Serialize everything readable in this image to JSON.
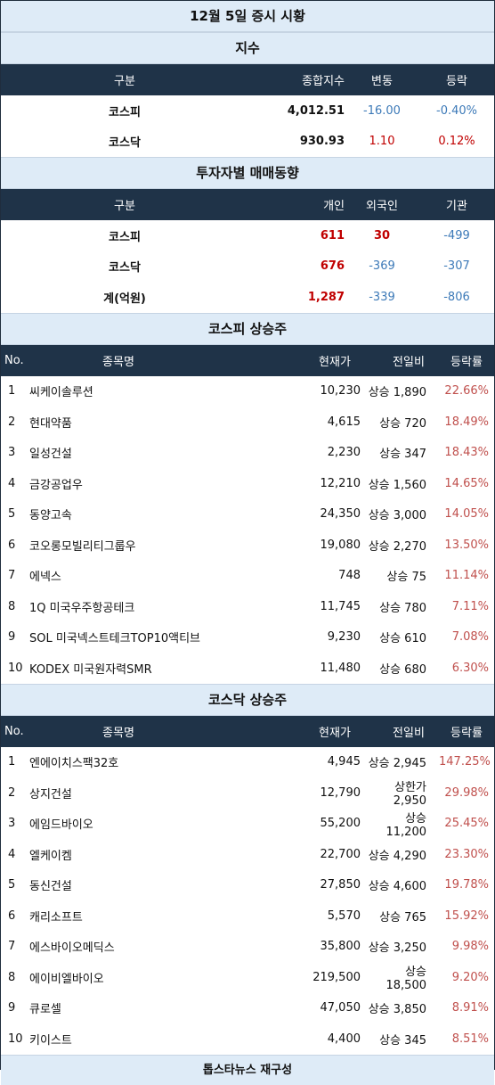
{
  "title": "12월 5일 증시 시황",
  "index": {
    "section_title": "지수",
    "headers": [
      "구분",
      "종합지수",
      "변동",
      "등락"
    ],
    "rows": [
      {
        "name": "코스피",
        "value": "4,012.51",
        "change": "-16.00",
        "rate": "-0.40%"
      },
      {
        "name": "코스닥",
        "value": "930.93",
        "change": "1.10",
        "rate": "0.12%"
      }
    ]
  },
  "investor": {
    "section_title": "투자자별 매매동향",
    "headers": [
      "구분",
      "개인",
      "외국인",
      "기관"
    ],
    "rows": [
      {
        "name": "코스피",
        "individual": "611",
        "foreign": "30",
        "institution": "-499"
      },
      {
        "name": "코스닥",
        "individual": "676",
        "foreign": "-369",
        "institution": "-307"
      },
      {
        "name": "계(억원)",
        "individual": "1,287",
        "foreign": "-339",
        "institution": "-806"
      }
    ]
  },
  "kospi": {
    "section_title": "코스피 상승주",
    "headers": [
      "No.",
      "종목명",
      "현재가",
      "전일비",
      "등락률"
    ],
    "rows": [
      {
        "no": "1",
        "name": "씨케이솔루션",
        "price": "10,230",
        "change": "상승 1,890",
        "rate": "22.66%"
      },
      {
        "no": "2",
        "name": "현대약품",
        "price": "4,615",
        "change": "상승 720",
        "rate": "18.49%"
      },
      {
        "no": "3",
        "name": "일성건설",
        "price": "2,230",
        "change": "상승 347",
        "rate": "18.43%"
      },
      {
        "no": "4",
        "name": "금강공업우",
        "price": "12,210",
        "change": "상승 1,560",
        "rate": "14.65%"
      },
      {
        "no": "5",
        "name": "동양고속",
        "price": "24,350",
        "change": "상승 3,000",
        "rate": "14.05%"
      },
      {
        "no": "6",
        "name": "코오롱모빌리티그룹우",
        "price": "19,080",
        "change": "상승 2,270",
        "rate": "13.50%"
      },
      {
        "no": "7",
        "name": "에넥스",
        "price": "748",
        "change": "상승 75",
        "rate": "11.14%"
      },
      {
        "no": "8",
        "name": "1Q 미국우주항공테크",
        "price": "11,745",
        "change": "상승 780",
        "rate": "7.11%"
      },
      {
        "no": "9",
        "name": "SOL 미국넥스트테크TOP10액티브",
        "price": "9,230",
        "change": "상승 610",
        "rate": "7.08%"
      },
      {
        "no": "10",
        "name": "KODEX 미국원자력SMR",
        "price": "11,480",
        "change": "상승 680",
        "rate": "6.30%"
      }
    ]
  },
  "kosdaq": {
    "section_title": "코스닥 상승주",
    "headers": [
      "No.",
      "종목명",
      "현재가",
      "전일비",
      "등락률"
    ],
    "rows": [
      {
        "no": "1",
        "name": "엔에이치스팩32호",
        "price": "4,945",
        "change": "상승 2,945",
        "rate": "147.25%"
      },
      {
        "no": "2",
        "name": "상지건설",
        "price": "12,790",
        "change": "상한가 2,950",
        "rate": "29.98%"
      },
      {
        "no": "3",
        "name": "에임드바이오",
        "price": "55,200",
        "change": "상승 11,200",
        "rate": "25.45%"
      },
      {
        "no": "4",
        "name": "엘케이켐",
        "price": "22,700",
        "change": "상승 4,290",
        "rate": "23.30%"
      },
      {
        "no": "5",
        "name": "동신건설",
        "price": "27,850",
        "change": "상승 4,600",
        "rate": "19.78%"
      },
      {
        "no": "6",
        "name": "캐리소프트",
        "price": "5,570",
        "change": "상승 765",
        "rate": "15.92%"
      },
      {
        "no": "7",
        "name": "에스바이오메딕스",
        "price": "35,800",
        "change": "상승 3,250",
        "rate": "9.98%"
      },
      {
        "no": "8",
        "name": "에이비엘바이오",
        "price": "219,500",
        "change": "상승 18,500",
        "rate": "9.20%"
      },
      {
        "no": "9",
        "name": "큐로셀",
        "price": "47,050",
        "change": "상승 3,850",
        "rate": "8.91%"
      },
      {
        "no": "10",
        "name": "키이스트",
        "price": "4,400",
        "change": "상승 345",
        "rate": "8.51%"
      }
    ]
  },
  "footer": "톱스타뉴스 재구성",
  "colors": {
    "header_bg": "#1f3348",
    "section_bg": "#deebf7",
    "positive": "#c00000",
    "negative": "#3d7ab8"
  }
}
